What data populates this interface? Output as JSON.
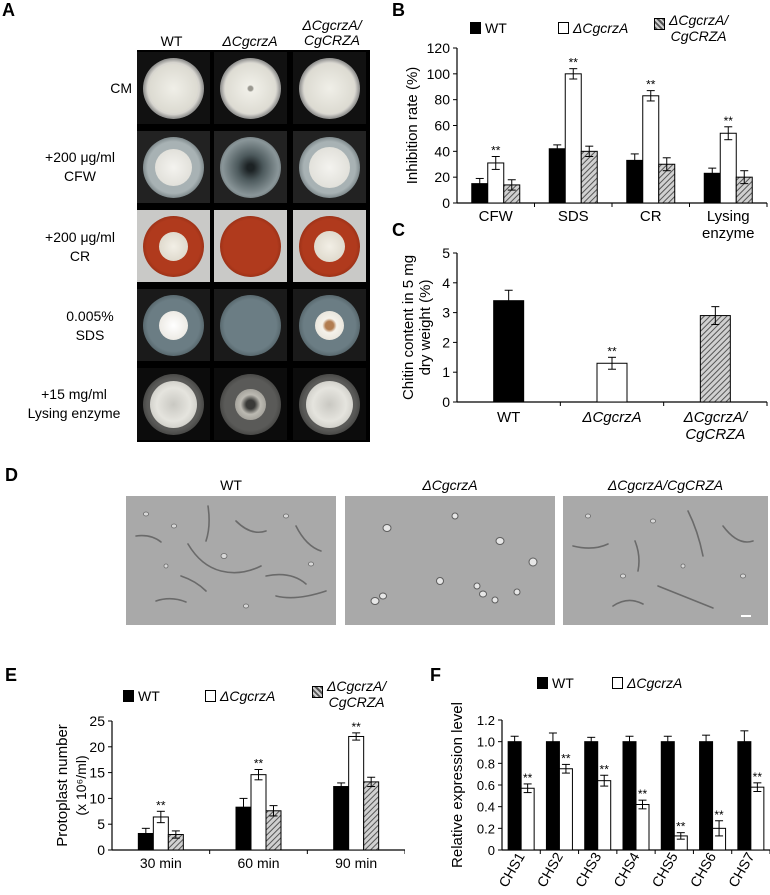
{
  "panel_letters": {
    "a": "A",
    "b": "B",
    "c": "C",
    "d": "D",
    "e": "E",
    "f": "F"
  },
  "strains": {
    "wt": "WT",
    "mut": "ΔCgcrzA",
    "comp1": "ΔCgcrzA/",
    "comp2": "CgCRZA",
    "comp_full": "ΔCgcrzA/CgCRZA"
  },
  "panel_a": {
    "rows": [
      {
        "line1": "CM",
        "line2": ""
      },
      {
        "line1": "+200 μg/ml",
        "line2": "CFW"
      },
      {
        "line1": "+200 μg/ml",
        "line2": "CR"
      },
      {
        "line1": "0.005%",
        "line2": "SDS"
      },
      {
        "line1": "+15 mg/ml",
        "line2": "Lysing enzyme"
      }
    ]
  },
  "significance": "**",
  "colors": {
    "wt": "#000000",
    "mut": "#ffffff",
    "comp": "hatched gray",
    "cr_plate": "#b03a1d"
  },
  "chart_data": [
    {
      "panel": "B",
      "type": "bar",
      "categories": [
        "CFW",
        "SDS",
        "CR",
        "Lysing enzyme"
      ],
      "category_lines": [
        [
          "CFW"
        ],
        [
          "SDS"
        ],
        [
          "CR"
        ],
        [
          "Lysing",
          "enzyme"
        ]
      ],
      "series": [
        {
          "name": "WT",
          "values": [
            15,
            42,
            33,
            23
          ],
          "errors": [
            4,
            3,
            5,
            4
          ]
        },
        {
          "name": "ΔCgcrzA",
          "values": [
            31,
            100,
            83,
            54
          ],
          "errors": [
            5,
            4,
            4,
            5
          ]
        },
        {
          "name": "ΔCgcrzA/CgCRZA",
          "values": [
            14,
            40,
            30,
            20
          ],
          "errors": [
            4,
            4,
            5,
            5
          ]
        }
      ],
      "significant": [
        [],
        [
          0,
          1,
          2,
          3
        ],
        []
      ],
      "ylabel": "Inhibition rate (%)",
      "ylim": [
        0,
        120
      ],
      "yticks": [
        0,
        20,
        40,
        60,
        80,
        100,
        120
      ],
      "legend": "top"
    },
    {
      "panel": "C",
      "type": "bar",
      "categories": [
        "WT",
        "ΔCgcrzA",
        "ΔCgcrzA/CgCRZA"
      ],
      "category_lines": [
        [
          "WT"
        ],
        [
          "ΔCgcrzA"
        ],
        [
          "ΔCgcrzA/",
          "CgCRZA"
        ]
      ],
      "values": [
        3.4,
        1.3,
        2.9
      ],
      "errors": [
        0.35,
        0.2,
        0.3
      ],
      "significant": [
        1
      ],
      "ylabel_lines": [
        "Chitin content in 5 mg",
        "dry weight (%)"
      ],
      "ylim": [
        0,
        5
      ],
      "yticks": [
        0,
        1,
        2,
        3,
        4,
        5
      ]
    },
    {
      "panel": "E",
      "type": "bar",
      "categories": [
        "30 min",
        "60 min",
        "90 min"
      ],
      "series": [
        {
          "name": "WT",
          "values": [
            3.2,
            8.3,
            12.3
          ],
          "errors": [
            1.0,
            1.7,
            0.7
          ]
        },
        {
          "name": "ΔCgcrzA",
          "values": [
            6.4,
            14.6,
            22
          ],
          "errors": [
            1.1,
            1.0,
            0.7
          ]
        },
        {
          "name": "ΔCgcrzA/CgCRZA",
          "values": [
            3,
            7.6,
            13.2
          ],
          "errors": [
            0.7,
            1.0,
            0.9
          ]
        }
      ],
      "significant": [
        [],
        [
          0,
          1,
          2
        ],
        []
      ],
      "ylabel": "Protoplast number",
      "ylabel2": "(x 10⁶/ml)",
      "ylim": [
        0,
        25
      ],
      "yticks": [
        0,
        5,
        10,
        15,
        20,
        25
      ],
      "legend": "top"
    },
    {
      "panel": "F",
      "type": "bar",
      "categories": [
        "CHS1",
        "CHS2",
        "CHS3",
        "CHS4",
        "CHS5",
        "CHS6",
        "CHS7"
      ],
      "series": [
        {
          "name": "WT",
          "values": [
            1,
            1,
            1,
            1,
            1,
            1,
            1
          ],
          "errors": [
            0.05,
            0.08,
            0.04,
            0.05,
            0.05,
            0.06,
            0.1
          ]
        },
        {
          "name": "ΔCgcrzA",
          "values": [
            0.57,
            0.75,
            0.64,
            0.42,
            0.13,
            0.2,
            0.58
          ],
          "errors": [
            0.04,
            0.04,
            0.05,
            0.04,
            0.03,
            0.07,
            0.04
          ]
        }
      ],
      "significant": [
        [],
        [
          0,
          1,
          2,
          3,
          4,
          5,
          6
        ]
      ],
      "ylabel": "Relative expression level",
      "ylim": [
        0,
        1.2
      ],
      "yticks": [
        "0",
        "0.2",
        "0.4",
        "0.6",
        "0.8",
        "1.0",
        "1.2"
      ],
      "legend": "top"
    }
  ]
}
